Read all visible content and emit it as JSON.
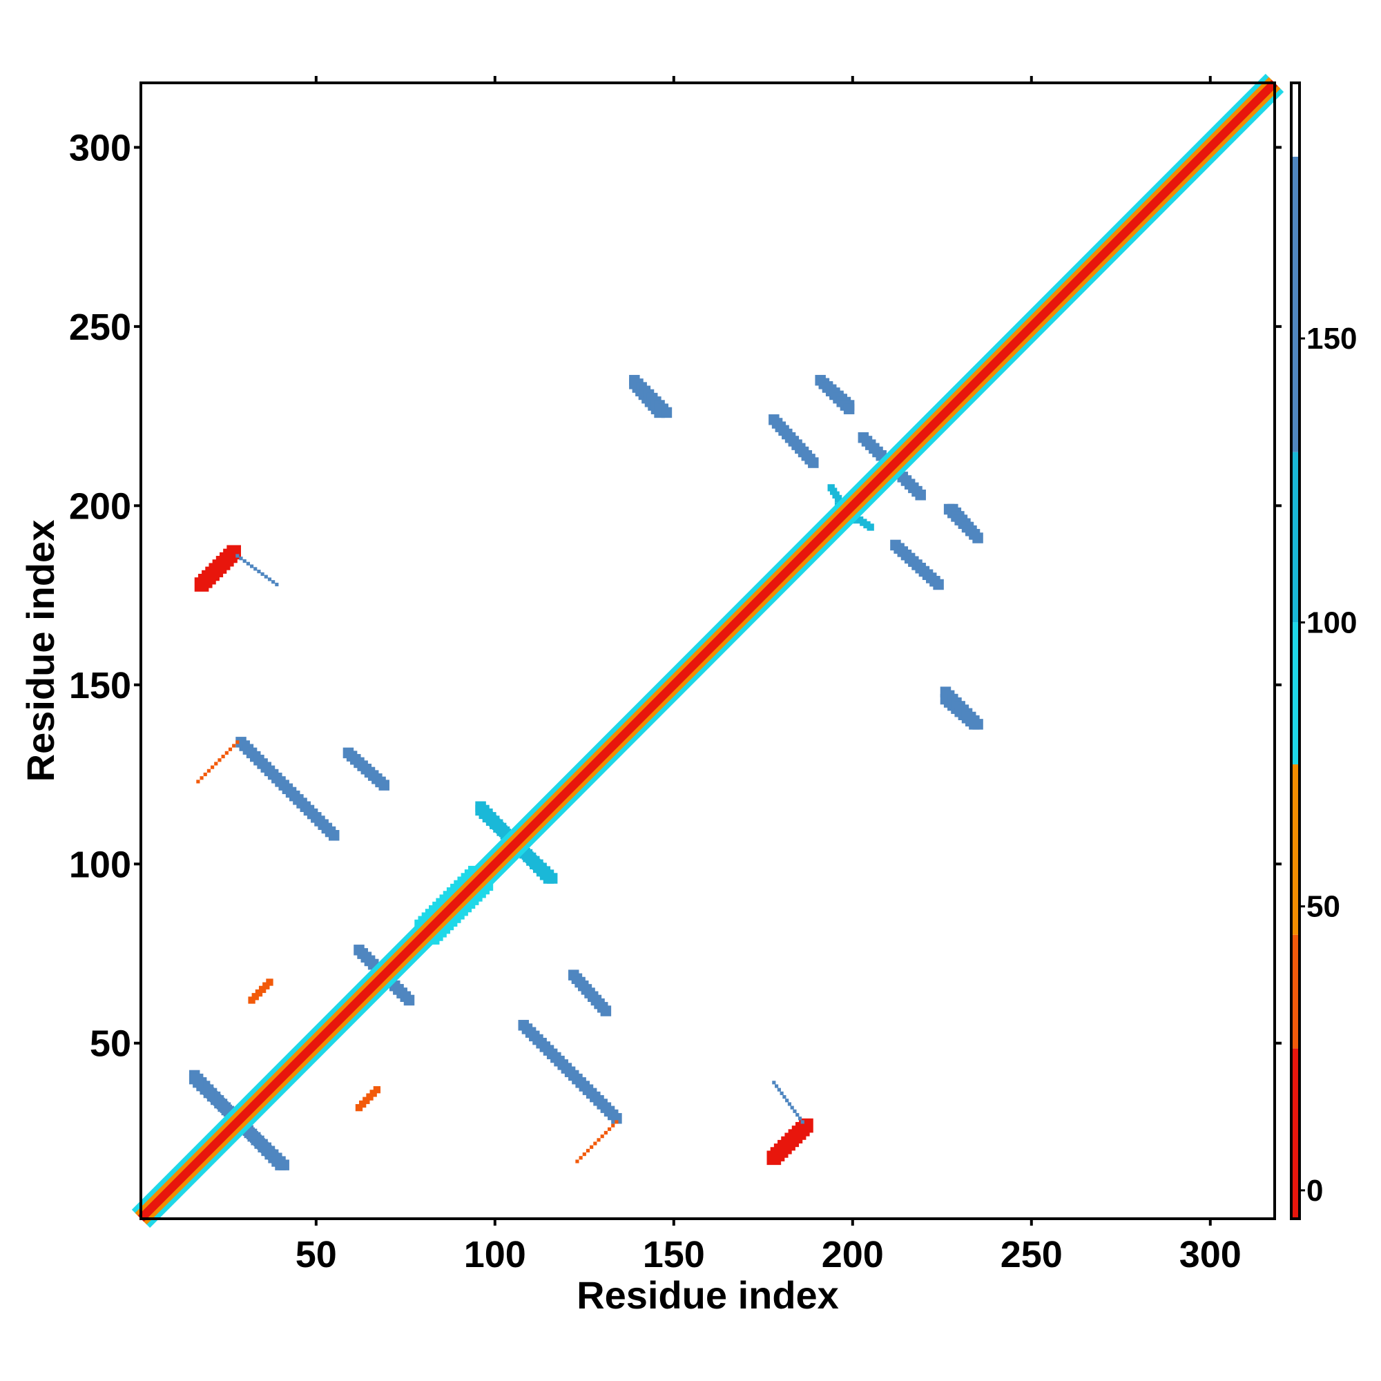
{
  "chart_data": {
    "type": "heatmap",
    "title": "",
    "xlabel": "Residue index",
    "ylabel": "Residue index",
    "xlim": [
      1,
      318
    ],
    "ylim": [
      1,
      318
    ],
    "x_ticks": [
      50,
      100,
      150,
      200,
      250,
      300
    ],
    "y_ticks": [
      50,
      100,
      150,
      200,
      250,
      300
    ],
    "x_tick_labels": [
      "50",
      "100",
      "150",
      "200",
      "250",
      "300"
    ],
    "y_tick_labels": [
      "50",
      "100",
      "150",
      "200",
      "250",
      "300"
    ],
    "grid": false,
    "colorbar": {
      "range": [
        -5,
        195
      ],
      "ticks": [
        0,
        50,
        100,
        150
      ],
      "tick_labels": [
        "0",
        "50",
        "100",
        "150"
      ],
      "bands": [
        {
          "from": -5,
          "to": 25,
          "color": "#e8160c"
        },
        {
          "from": 25,
          "to": 45,
          "color": "#f25a0a"
        },
        {
          "from": 45,
          "to": 75,
          "color": "#f28c00"
        },
        {
          "from": 75,
          "to": 100,
          "color": "#1fd8e8"
        },
        {
          "from": 100,
          "to": 130,
          "color": "#1ab8d8"
        },
        {
          "from": 130,
          "to": 182,
          "color": "#4f86c0"
        },
        {
          "from": 182,
          "to": 195,
          "color": "#ffffff"
        }
      ]
    },
    "colors": {
      "red": "#e8160c",
      "orange_red": "#f25a0a",
      "orange": "#f28c00",
      "cyan": "#1fd8e8",
      "light_blue": "#1ab8d8",
      "steel_blue": "#4f86c0"
    },
    "diagonal": {
      "from": 1,
      "to": 318
    },
    "contacts": [
      {
        "shape": "antiparallel",
        "x": [
          16,
          40
        ],
        "y": [
          41,
          16
        ],
        "color": "#4f86c0",
        "width": 3
      },
      {
        "shape": "antiparallel",
        "y": [
          16,
          40
        ],
        "x": [
          41,
          16
        ],
        "color": "#4f86c0",
        "width": 3
      },
      {
        "shape": "parallel",
        "x": [
          18,
          27
        ],
        "y": [
          178,
          187
        ],
        "color": "#e8160c",
        "width": 4
      },
      {
        "shape": "parallel",
        "x": [
          178,
          187
        ],
        "y": [
          18,
          27
        ],
        "color": "#e8160c",
        "width": 4
      },
      {
        "shape": "antiparallel",
        "x": [
          28,
          39
        ],
        "y": [
          186,
          178
        ],
        "color": "#4f86c0",
        "width": 1
      },
      {
        "shape": "antiparallel",
        "x": [
          178,
          186
        ],
        "y": [
          39,
          28
        ],
        "color": "#4f86c0",
        "width": 1
      },
      {
        "shape": "antiparallel",
        "x": [
          29,
          55
        ],
        "y": [
          134,
          108
        ],
        "color": "#4f86c0",
        "width": 3
      },
      {
        "shape": "antiparallel",
        "x": [
          108,
          134
        ],
        "y": [
          55,
          29
        ],
        "color": "#4f86c0",
        "width": 3
      },
      {
        "shape": "parallel",
        "x": [
          17,
          28
        ],
        "y": [
          123,
          134
        ],
        "color": "#f25a0a",
        "width": 1
      },
      {
        "shape": "parallel",
        "x": [
          123,
          134
        ],
        "y": [
          17,
          28
        ],
        "color": "#f25a0a",
        "width": 1
      },
      {
        "shape": "antiparallel",
        "x": [
          59,
          69
        ],
        "y": [
          131,
          122
        ],
        "color": "#4f86c0",
        "width": 3
      },
      {
        "shape": "antiparallel",
        "x": [
          122,
          131
        ],
        "y": [
          69,
          59
        ],
        "color": "#4f86c0",
        "width": 3
      },
      {
        "shape": "antiparallel",
        "x": [
          62,
          75
        ],
        "y": [
          76,
          63
        ],
        "color": "#4f86c0",
        "width": 3
      },
      {
        "shape": "antiparallel",
        "x": [
          63,
          76
        ],
        "y": [
          75,
          62
        ],
        "color": "#4f86c0",
        "width": 3
      },
      {
        "shape": "parallel",
        "x": [
          32,
          37
        ],
        "y": [
          62,
          67
        ],
        "color": "#f25a0a",
        "width": 2
      },
      {
        "shape": "parallel",
        "x": [
          62,
          67
        ],
        "y": [
          32,
          37
        ],
        "color": "#f25a0a",
        "width": 2
      },
      {
        "shape": "antiparallel",
        "x": [
          96,
          115
        ],
        "y": [
          116,
          96
        ],
        "color": "#1ab8d8",
        "width": 3
      },
      {
        "shape": "antiparallel",
        "x": [
          96,
          116
        ],
        "y": [
          115,
          96
        ],
        "color": "#1ab8d8",
        "width": 3
      },
      {
        "shape": "parallel",
        "x": [
          80,
          95
        ],
        "y": [
          82,
          97
        ],
        "color": "#1fd8e8",
        "width": 5
      },
      {
        "shape": "parallel",
        "x": [
          82,
          97
        ],
        "y": [
          80,
          95
        ],
        "color": "#1fd8e8",
        "width": 5
      },
      {
        "shape": "antiparallel",
        "x": [
          139,
          146
        ],
        "y": [
          234,
          226
        ],
        "color": "#4f86c0",
        "width": 3
      },
      {
        "shape": "antiparallel",
        "x": [
          226,
          234
        ],
        "y": [
          146,
          139
        ],
        "color": "#4f86c0",
        "width": 3
      },
      {
        "shape": "antiparallel",
        "x": [
          178,
          189
        ],
        "y": [
          224,
          212
        ],
        "color": "#4f86c0",
        "width": 3
      },
      {
        "shape": "antiparallel",
        "x": [
          212,
          224
        ],
        "y": [
          189,
          178
        ],
        "color": "#4f86c0",
        "width": 3
      },
      {
        "shape": "antiparallel",
        "x": [
          191,
          199
        ],
        "y": [
          235,
          228
        ],
        "color": "#4f86c0",
        "width": 3
      },
      {
        "shape": "antiparallel",
        "x": [
          228,
          235
        ],
        "y": [
          199,
          191
        ],
        "color": "#4f86c0",
        "width": 3
      },
      {
        "shape": "antiparallel",
        "x": [
          203,
          219
        ],
        "y": [
          219,
          203
        ],
        "color": "#4f86c0",
        "width": 3
      },
      {
        "shape": "antiparallel",
        "x": [
          227,
          234
        ],
        "y": [
          199,
          192
        ],
        "color": "#4f86c0",
        "width": 3
      },
      {
        "shape": "antiparallel",
        "x": [
          192,
          199
        ],
        "y": [
          234,
          227
        ],
        "color": "#4f86c0",
        "width": 3
      },
      {
        "shape": "antiparallel",
        "x": [
          226,
          235
        ],
        "y": [
          148,
          139
        ],
        "color": "#4f86c0",
        "width": 3
      },
      {
        "shape": "antiparallel",
        "x": [
          139,
          148
        ],
        "y": [
          235,
          226
        ],
        "color": "#4f86c0",
        "width": 3
      },
      {
        "shape": "antiparallel",
        "x": [
          194,
          200
        ],
        "y": [
          205,
          196
        ],
        "color": "#1ab8d8",
        "width": 2
      },
      {
        "shape": "antiparallel",
        "x": [
          196,
          205
        ],
        "y": [
          200,
          194
        ],
        "color": "#1ab8d8",
        "width": 2
      }
    ]
  }
}
